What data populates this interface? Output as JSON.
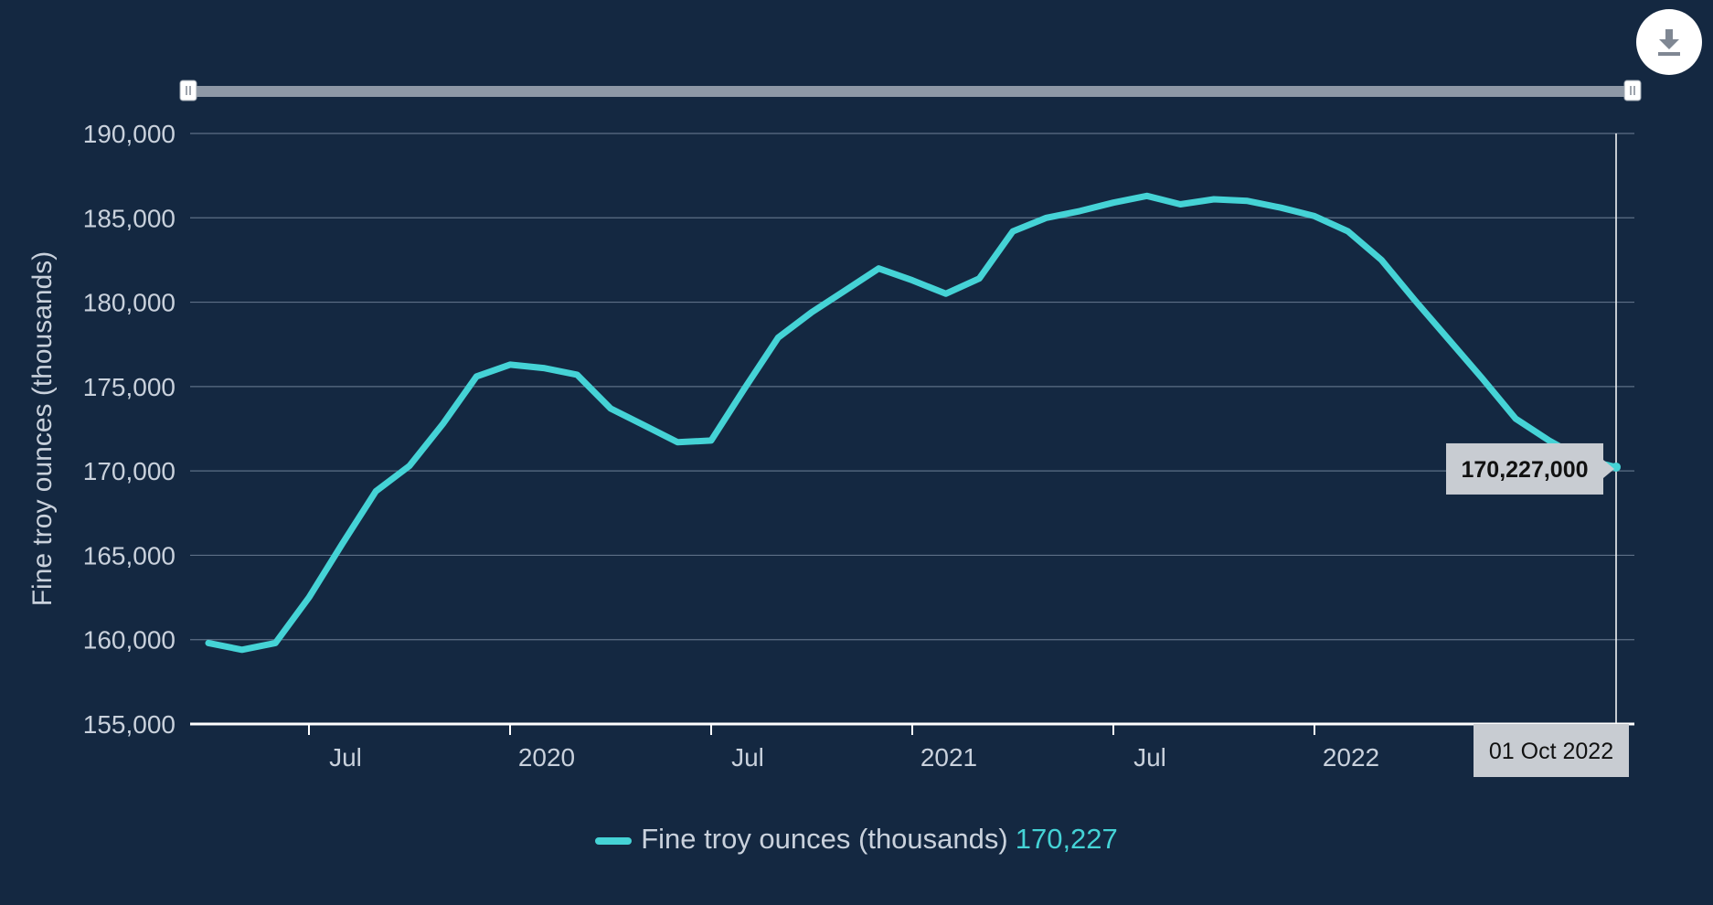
{
  "colors": {
    "background": "#142841",
    "line": "#45d3d6",
    "grid": "#5d6f86",
    "text": "#c9d1dc",
    "tooltip_bg": "#c8ccd2",
    "navigator": "#8e98a6"
  },
  "toolbar": {
    "download_icon": "download-icon"
  },
  "legend": {
    "series_name": "Fine troy ounces (thousands)",
    "value": "170,227"
  },
  "tooltip": {
    "value_label": "170,227,000",
    "date_label": "01 Oct 2022"
  },
  "chart_data": {
    "type": "line",
    "title": "",
    "ylabel": "Fine troy ounces (thousands)",
    "xlabel": "",
    "grid": true,
    "legend_position": "bottom",
    "ylim": [
      155000,
      190000
    ],
    "y_ticks": [
      155000,
      160000,
      165000,
      170000,
      175000,
      180000,
      185000,
      190000
    ],
    "y_tick_labels": [
      "155,000",
      "160,000",
      "165,000",
      "170,000",
      "175,000",
      "180,000",
      "185,000",
      "190,000"
    ],
    "xlim": [
      "2019-04-01",
      "2022-10-01"
    ],
    "x_ticks": [
      "2019-07-01",
      "2020-01-01",
      "2020-07-01",
      "2021-01-01",
      "2021-07-01",
      "2022-01-01"
    ],
    "x_tick_labels": [
      "Jul",
      "2020",
      "Jul",
      "2021",
      "Jul",
      "2022"
    ],
    "series": [
      {
        "name": "Fine troy ounces (thousands)",
        "x": [
          "2019-04-01",
          "2019-05-01",
          "2019-06-01",
          "2019-07-01",
          "2019-08-01",
          "2019-09-01",
          "2019-10-01",
          "2019-11-01",
          "2019-12-01",
          "2020-01-01",
          "2020-02-01",
          "2020-03-01",
          "2020-04-01",
          "2020-05-01",
          "2020-06-01",
          "2020-07-01",
          "2020-08-01",
          "2020-09-01",
          "2020-10-01",
          "2020-11-01",
          "2020-12-01",
          "2021-01-01",
          "2021-02-01",
          "2021-03-01",
          "2021-04-01",
          "2021-05-01",
          "2021-06-01",
          "2021-07-01",
          "2021-08-01",
          "2021-09-01",
          "2021-10-01",
          "2021-11-01",
          "2021-12-01",
          "2022-01-01",
          "2022-02-01",
          "2022-03-01",
          "2022-04-01",
          "2022-05-01",
          "2022-06-01",
          "2022-07-01",
          "2022-08-01",
          "2022-09-01",
          "2022-10-01"
        ],
        "values": [
          159800,
          159400,
          159800,
          162500,
          165700,
          168800,
          170300,
          172800,
          175600,
          176300,
          176100,
          175700,
          173700,
          172700,
          171700,
          171800,
          174900,
          177900,
          179400,
          180700,
          182000,
          181300,
          180500,
          181400,
          184200,
          185000,
          185400,
          185900,
          186300,
          185800,
          186100,
          186000,
          185600,
          185100,
          184200,
          182500,
          180100,
          177800,
          175500,
          173100,
          171800,
          170700,
          170227
        ]
      }
    ],
    "highlight": {
      "x": "2022-10-01",
      "value": 170227
    }
  }
}
